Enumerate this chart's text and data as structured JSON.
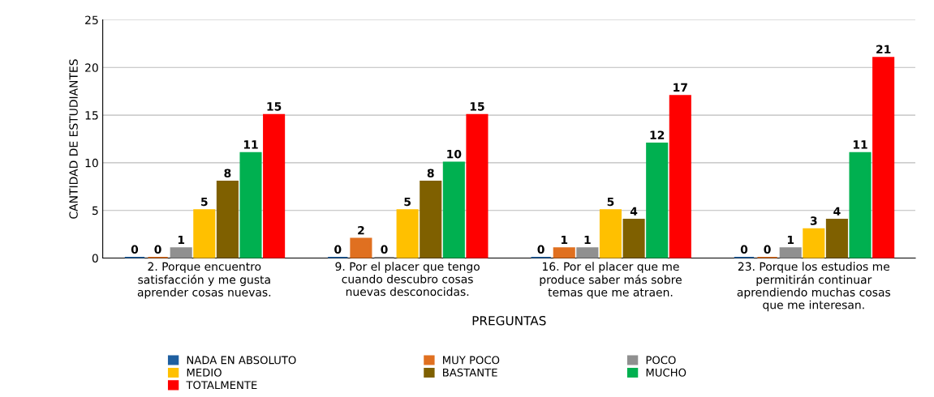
{
  "chart_data": {
    "type": "bar",
    "xlabel": "PREGUNTAS",
    "ylabel": "CANTIDAD DE ESTUDIANTES",
    "categories": [
      "2. Porque encuentro\nsatisfacción y me gusta\naprender cosas nuevas.",
      "9. Por el placer que tengo\ncuando descubro cosas\nnuevas desconocidas.",
      "16. Por el placer que me\nproduce saber más sobre\ntemas que me atraen.",
      "23. Porque los estudios me\npermitirán continuar\naprendiendo muchas cosas\nque me interesan."
    ],
    "series": [
      {
        "name": "NADA EN ABSOLUTO",
        "color": "#1f5fa0",
        "values": [
          0,
          0,
          0,
          0
        ]
      },
      {
        "name": "MUY POCO",
        "color": "#e07020",
        "values": [
          0,
          2,
          1,
          0
        ]
      },
      {
        "name": "POCO",
        "color": "#909090",
        "values": [
          1,
          0,
          1,
          1
        ]
      },
      {
        "name": "MEDIO",
        "color": "#ffc000",
        "values": [
          5,
          5,
          5,
          3
        ]
      },
      {
        "name": "BASTANTE",
        "color": "#7f6000",
        "values": [
          8,
          8,
          4,
          4
        ]
      },
      {
        "name": "MUCHO",
        "color": "#00b050",
        "values": [
          11,
          10,
          12,
          11
        ]
      },
      {
        "name": "TOTALMENTE",
        "color": "#ff0000",
        "values": [
          15,
          15,
          17,
          21
        ]
      }
    ],
    "ylim": [
      0,
      25
    ],
    "yticks": [
      0,
      5,
      10,
      15,
      20,
      25
    ],
    "grid": "y",
    "legend": "bottom",
    "data_labels": true
  }
}
